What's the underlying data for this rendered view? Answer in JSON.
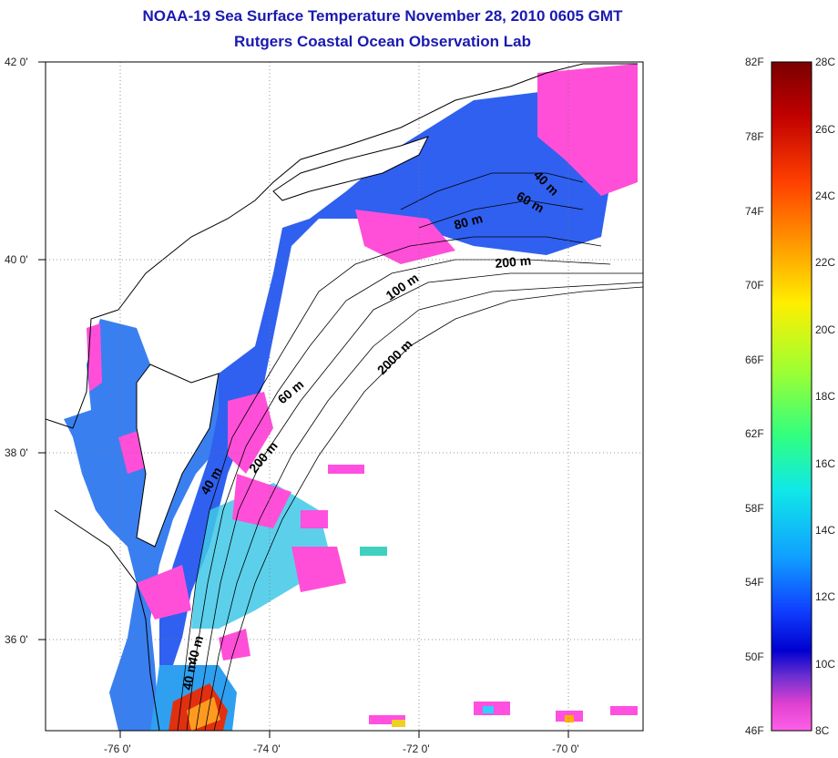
{
  "title": "NOAA-19 Sea Surface Temperature November 28, 2010 0605 GMT",
  "subtitle": "Rutgers Coastal Ocean Observation Lab",
  "map": {
    "lat_labels": [
      "42 0'",
      "40 0'",
      "38 0'",
      "36 0'"
    ],
    "lon_labels": [
      "-76 0'",
      "-74 0'",
      "-72 0'",
      "-70 0'"
    ],
    "lat_range": [
      35,
      42
    ],
    "lon_range": [
      -77,
      -69
    ],
    "grid": "dotted",
    "contour_labels": [
      "40 m",
      "60 m",
      "80 m",
      "200 m",
      "100 m",
      "2000 m",
      "60 m",
      "200 m",
      "40 m",
      "40 m",
      "40 m"
    ]
  },
  "colorbar": {
    "fahrenheit": [
      "82F",
      "78F",
      "74F",
      "70F",
      "66F",
      "62F",
      "58F",
      "54F",
      "50F",
      "46F"
    ],
    "celsius": [
      "28C",
      "26C",
      "24C",
      "22C",
      "20C",
      "18C",
      "16C",
      "14C",
      "12C",
      "10C",
      "8C"
    ],
    "colors": [
      "#7a0000",
      "#d01010",
      "#ff5a00",
      "#ffb000",
      "#fff000",
      "#a8ff30",
      "#30ff70",
      "#10f0e0",
      "#10a8ff",
      "#1040ff",
      "#0000d8",
      "#7a30d8",
      "#ff40c8",
      "#ff50e0"
    ]
  }
}
